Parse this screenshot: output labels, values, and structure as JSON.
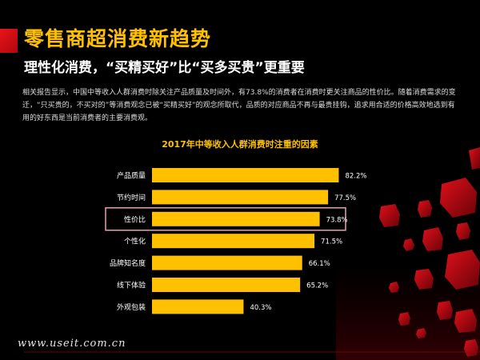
{
  "title": "零售商超消费新趋势",
  "subtitle": "理性化消费，“买精买好”比“买多买贵”更重要",
  "body": "相关报告显示，中国中等收入人群消费时除关注产品质量及时间外，有73.8%的消费者在消费时更关注商品的性价比。随着消费需求的变迁，“只买贵的，不买对的”等消费观念已被“买精买好”的观念所取代，品质的对应商品不再与最贵挂钩，追求用合适的价格高效地选到有用的好东西是当前消费者的主要消费观。",
  "watermark": "www.useit.com.cn",
  "colors": {
    "accent": "#ffc000",
    "title_bar": "#e8141a",
    "highlight_box": "#e8a0a8",
    "background": "#000000"
  },
  "chart_data": {
    "type": "bar",
    "orientation": "horizontal",
    "title": "2017年中等收入人群消费时注重的因素",
    "categories": [
      "产品质量",
      "节约时间",
      "性价比",
      "个性化",
      "品牌知名度",
      "线下体验",
      "外观包装"
    ],
    "values": [
      82.2,
      77.5,
      73.8,
      71.5,
      66.1,
      65.2,
      40.3
    ],
    "value_labels": [
      "82.2%",
      "77.5%",
      "73.8%",
      "71.5%",
      "66.1%",
      "65.2%",
      "40.3%"
    ],
    "unit": "%",
    "highlighted_category": "性价比",
    "xlim": [
      0,
      100
    ],
    "grid": false,
    "legend": "none"
  }
}
